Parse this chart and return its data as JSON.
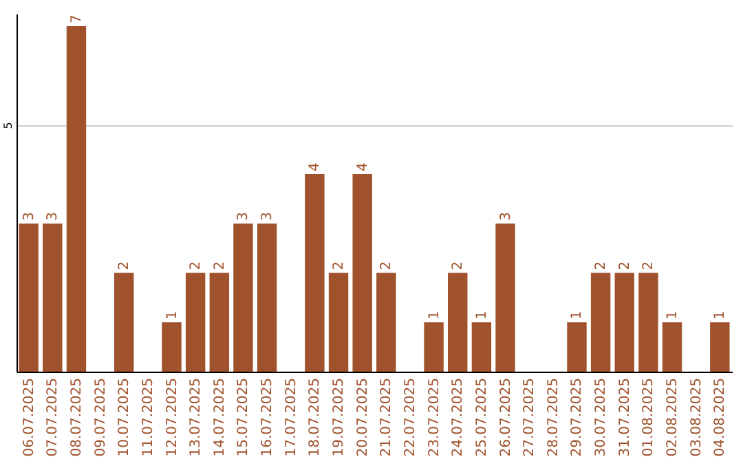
{
  "chart_data": {
    "type": "bar",
    "categories": [
      "06.07.2025",
      "07.07.2025",
      "08.07.2025",
      "09.07.2025",
      "10.07.2025",
      "11.07.2025",
      "12.07.2025",
      "13.07.2025",
      "14.07.2025",
      "15.07.2025",
      "16.07.2025",
      "17.07.2025",
      "18.07.2025",
      "19.07.2025",
      "20.07.2025",
      "21.07.2025",
      "22.07.2025",
      "23.07.2025",
      "24.07.2025",
      "25.07.2025",
      "26.07.2025",
      "27.07.2025",
      "28.07.2025",
      "29.07.2025",
      "30.07.2025",
      "31.07.2025",
      "01.08.2025",
      "02.08.2025",
      "03.08.2025",
      "04.08.2025"
    ],
    "values": [
      3,
      3,
      7,
      0,
      2,
      0,
      1,
      2,
      2,
      3,
      3,
      0,
      4,
      2,
      4,
      2,
      0,
      1,
      2,
      1,
      3,
      0,
      0,
      1,
      2,
      2,
      2,
      1,
      0,
      1
    ],
    "value_labels": [
      "3",
      "3",
      "7",
      null,
      "2",
      null,
      "1",
      "2",
      "2",
      "3",
      "3",
      null,
      "4",
      "2",
      "4",
      "2",
      null,
      "1",
      "2",
      "1",
      "3",
      null,
      null,
      "1",
      "2",
      "2",
      "2",
      "1",
      null,
      "1"
    ],
    "color": "#a0522d",
    "ylim": [
      0,
      7.25
    ],
    "yticks": [
      5
    ],
    "grid": "y"
  }
}
